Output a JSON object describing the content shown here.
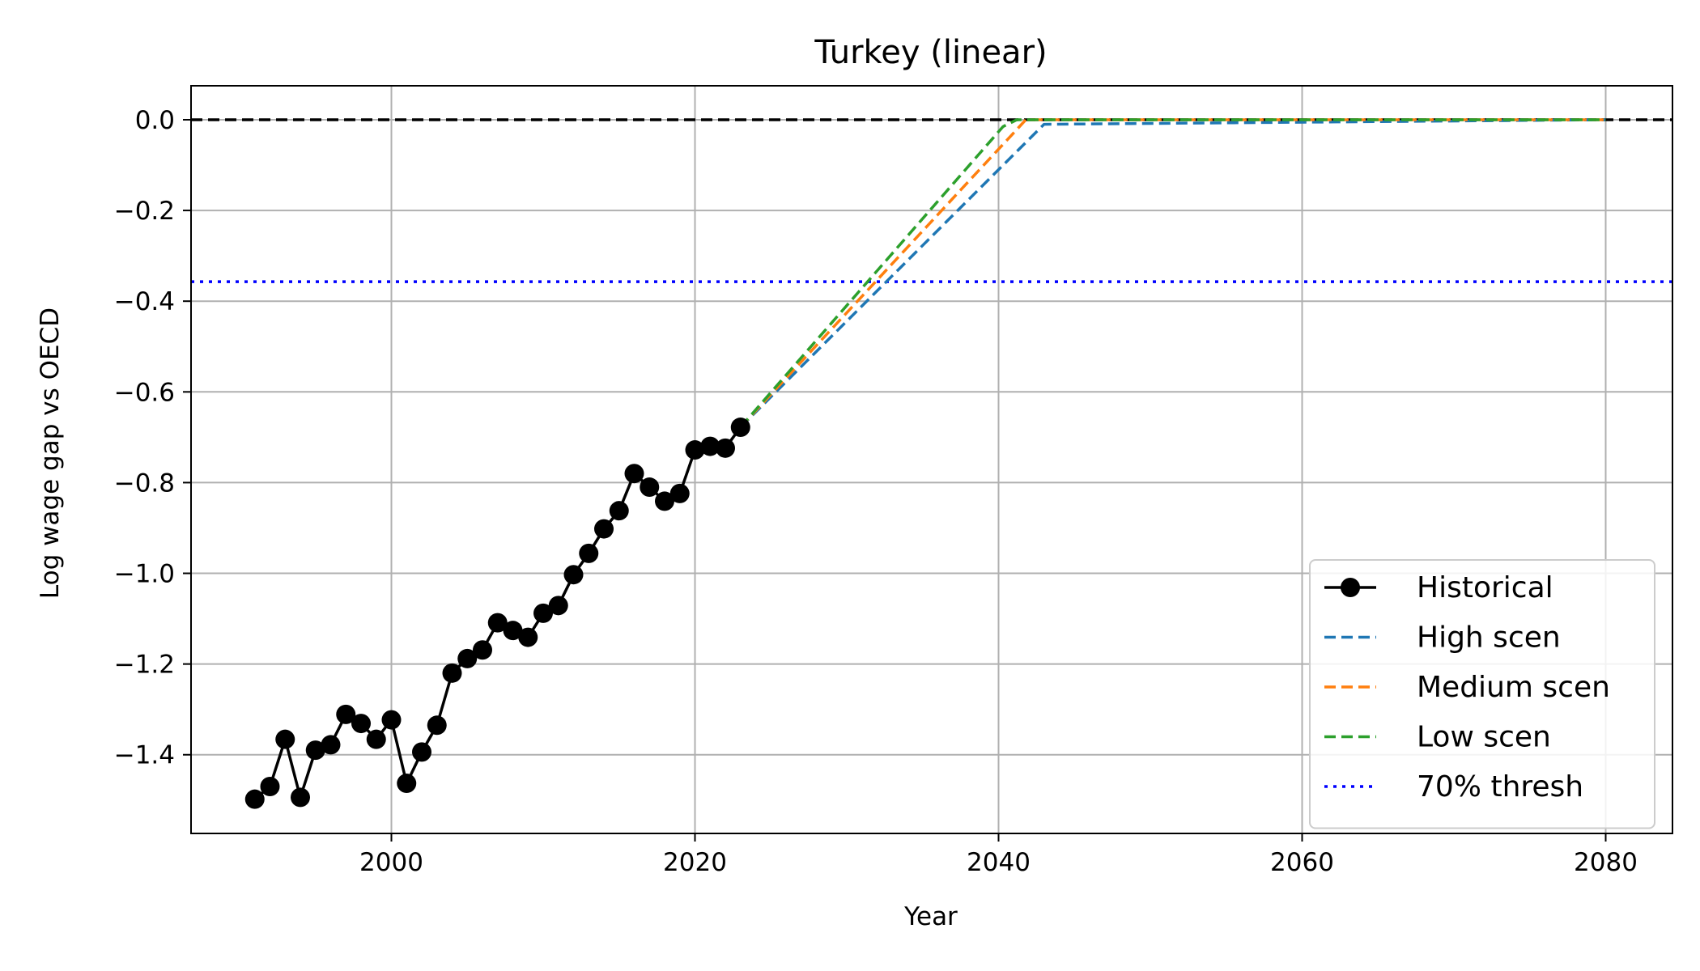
{
  "chart_data": {
    "type": "line",
    "title": "Turkey (linear)",
    "xlabel": "Year",
    "ylabel": "Log wage gap vs OECD",
    "xlim": [
      1986.8,
      2084.4
    ],
    "ylim": [
      -1.5735,
      0.0749
    ],
    "xticks": [
      2000,
      2020,
      2040,
      2060,
      2080
    ],
    "xtick_labels": [
      "2000",
      "2020",
      "2040",
      "2060",
      "2080"
    ],
    "yticks": [
      0.0,
      -0.2,
      -0.4,
      -0.6,
      -0.8,
      -1.0,
      -1.2,
      -1.4
    ],
    "ytick_labels": [
      "0.0",
      "−0.2",
      "−0.4",
      "−0.6",
      "−0.8",
      "−1.0",
      "−1.2",
      "−1.4"
    ],
    "grid": true,
    "legend_position": "lower-right",
    "reference_lines": [
      {
        "name": "zero-line",
        "y": 0.0,
        "color": "#000000",
        "style": "dashed"
      },
      {
        "name": "70% thresh",
        "y": -0.357,
        "color": "#0000ff",
        "style": "dotted"
      }
    ],
    "series": [
      {
        "name": "Historical",
        "color": "#000000",
        "style": "solid-marker",
        "x": [
          1991,
          1992,
          1993,
          1994,
          1995,
          1996,
          1997,
          1998,
          1999,
          2000,
          2001,
          2002,
          2003,
          2004,
          2005,
          2006,
          2007,
          2008,
          2009,
          2010,
          2011,
          2012,
          2013,
          2014,
          2015,
          2016,
          2017,
          2018,
          2019,
          2020,
          2021,
          2022,
          2023
        ],
        "y": [
          -1.498,
          -1.47,
          -1.366,
          -1.494,
          -1.39,
          -1.378,
          -1.311,
          -1.331,
          -1.366,
          -1.323,
          -1.463,
          -1.394,
          -1.335,
          -1.22,
          -1.188,
          -1.169,
          -1.109,
          -1.126,
          -1.141,
          -1.088,
          -1.071,
          -1.003,
          -0.956,
          -0.902,
          -0.862,
          -0.78,
          -0.81,
          -0.841,
          -0.824,
          -0.728,
          -0.72,
          -0.724,
          -0.678
        ]
      },
      {
        "name": "High scen",
        "color": "#1f77b4",
        "style": "dashed",
        "x": [
          2023,
          2043,
          2080
        ],
        "y": [
          -0.678,
          -0.01,
          0.0
        ]
      },
      {
        "name": "Medium scen",
        "color": "#ff7f0e",
        "style": "dashed",
        "x": [
          2023,
          2041.8,
          2080
        ],
        "y": [
          -0.678,
          0.0,
          0.0
        ]
      },
      {
        "name": "Low scen",
        "color": "#2ca02c",
        "style": "dashed",
        "x": [
          2023,
          2040.3,
          2041.2,
          2080
        ],
        "y": [
          -0.678,
          -0.015,
          0.0,
          0.0
        ]
      }
    ],
    "legend": [
      {
        "label": "Historical",
        "color": "#000000",
        "style": "solid-marker"
      },
      {
        "label": "High scen",
        "color": "#1f77b4",
        "style": "dashed"
      },
      {
        "label": "Medium scen",
        "color": "#ff7f0e",
        "style": "dashed"
      },
      {
        "label": "Low scen",
        "color": "#2ca02c",
        "style": "dashed"
      },
      {
        "label": "70% thresh",
        "color": "#0000ff",
        "style": "dotted"
      }
    ]
  }
}
